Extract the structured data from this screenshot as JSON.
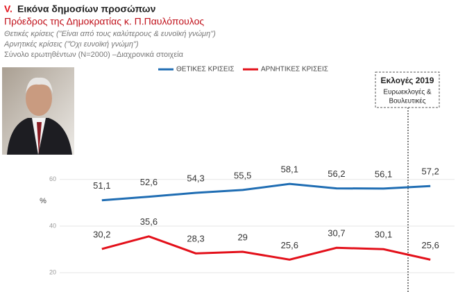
{
  "chart_data": {
    "type": "line",
    "title_prefix": "V.",
    "title": "Εικόνα δημοσίων προσώπων",
    "subtitle": "Πρόεδρος της Δημοκρατίας κ. Π.Παυλόπουλος",
    "notes": [
      "Θετικές κρίσεις (\"Είναι από τους καλύτερους & ευνοϊκή γνώμη\")",
      "Αρνητικές κρίσεις (\"Όχι ευνοϊκή γνώμη\")",
      "Σύνολο ερωτηθέντων (N=2000) –Διαχρονικά στοιχεία"
    ],
    "y_label": "%",
    "categories": [
      null,
      null,
      null,
      null,
      null,
      null,
      null,
      null
    ],
    "series": [
      {
        "name": "ΘΕΤΙΚΕΣ ΚΡΙΣΕΙΣ",
        "color": "#1f6db3",
        "values": [
          51.1,
          52.6,
          54.3,
          55.5,
          58.1,
          56.2,
          56.1,
          57.2
        ],
        "value_labels": [
          "51,1",
          "52,6",
          "54,3",
          "55,5",
          "58,1",
          "56,2",
          "56,1",
          "57,2"
        ]
      },
      {
        "name": "ΑΡΝΗΤΙΚΕΣ ΚΡΙΣΕΙΣ",
        "color": "#e3101a",
        "values": [
          30.2,
          35.6,
          28.3,
          29,
          25.6,
          30.7,
          30.1,
          25.6
        ],
        "value_labels": [
          "30,2",
          "35,6",
          "28,3",
          "29",
          "25,6",
          "30,7",
          "30,1",
          "25,6"
        ]
      }
    ],
    "annotation": {
      "title": "Εκλογές 2019",
      "lines": [
        "Ευρωεκλογές &",
        "Βουλευτικές"
      ]
    },
    "ylim": [
      15,
      65
    ],
    "yticks": [
      20,
      40,
      60
    ],
    "grid": true,
    "legend": "top"
  }
}
